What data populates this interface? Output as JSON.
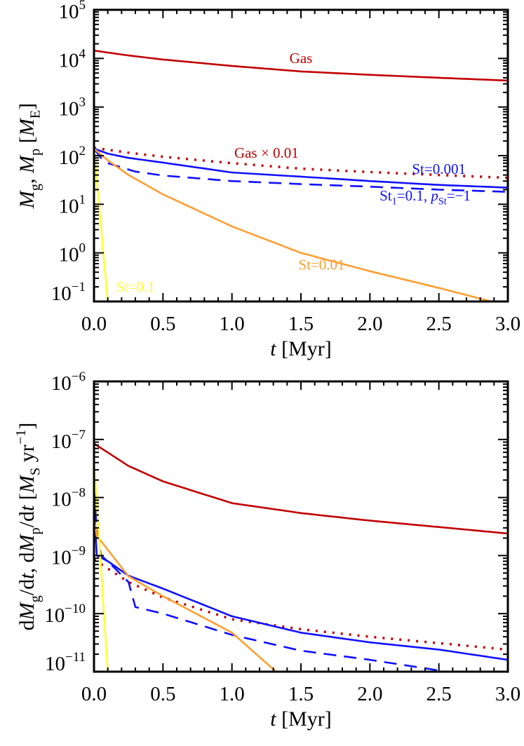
{
  "chart_data": [
    {
      "type": "line",
      "xlabel": [
        [
          "t",
          "i"
        ],
        [
          " [Myr]",
          ""
        ]
      ],
      "ylabel": [
        [
          "M",
          "i"
        ],
        [
          "g",
          "sub"
        ],
        [
          ", ",
          ""
        ],
        [
          "M",
          "i"
        ],
        [
          "p",
          "sub"
        ],
        [
          " [",
          ""
        ],
        [
          "M",
          "i"
        ],
        [
          "E",
          "sub"
        ],
        [
          "]",
          ""
        ]
      ],
      "xlim": [
        0,
        3
      ],
      "ylim": [
        0.1,
        100000
      ],
      "yscale": "log",
      "xticks": [
        "0.0",
        "0.5",
        "1.0",
        "1.5",
        "2.0",
        "2.5",
        "3.0"
      ],
      "yticks": [
        {
          "base": "10",
          "exp": "5"
        },
        {
          "base": "10",
          "exp": "4"
        },
        {
          "base": "10",
          "exp": "3"
        },
        {
          "base": "10",
          "exp": "2"
        },
        {
          "base": "10",
          "exp": "1"
        },
        {
          "base": "10",
          "exp": "0"
        },
        {
          "base": "10",
          "exp": "−1"
        }
      ],
      "series": [
        {
          "name": "Gas",
          "color": "#c00000",
          "style": "solid",
          "points": [
            [
              0,
              14500
            ],
            [
              0.25,
              11500
            ],
            [
              0.5,
              9500
            ],
            [
              1,
              7000
            ],
            [
              1.5,
              5400
            ],
            [
              2,
              4600
            ],
            [
              2.5,
              4000
            ],
            [
              3,
              3500
            ]
          ]
        },
        {
          "name": "Gas × 0.01",
          "color": "#c00000",
          "style": "dotted",
          "points": [
            [
              0,
              145
            ],
            [
              0.25,
              115
            ],
            [
              0.5,
              95
            ],
            [
              1,
              70
            ],
            [
              1.5,
              54
            ],
            [
              2,
              46
            ],
            [
              2.5,
              40
            ],
            [
              3,
              35
            ]
          ]
        },
        {
          "name": "St=0.001",
          "color": "#1010ff",
          "style": "solid",
          "points": [
            [
              0,
              140
            ],
            [
              0.1,
              110
            ],
            [
              0.25,
              90
            ],
            [
              0.5,
              72
            ],
            [
              1,
              45
            ],
            [
              1.5,
              37
            ],
            [
              2,
              30
            ],
            [
              2.5,
              25
            ],
            [
              3,
              22
            ]
          ]
        },
        {
          "name": "St1=0.1, pSt=−1",
          "color": "#1010ff",
          "style": "dashed",
          "points": [
            [
              0,
              140
            ],
            [
              0.05,
              90
            ],
            [
              0.1,
              70
            ],
            [
              0.3,
              47
            ],
            [
              0.5,
              39
            ],
            [
              1,
              30
            ],
            [
              1.5,
              26
            ],
            [
              2,
              23
            ],
            [
              2.5,
              20
            ],
            [
              3,
              18
            ]
          ]
        },
        {
          "name": "St=0.01",
          "color": "#ff9e33",
          "style": "solid",
          "points": [
            [
              0,
              140
            ],
            [
              0.1,
              80
            ],
            [
              0.25,
              40
            ],
            [
              0.5,
              16
            ],
            [
              1,
              3.5
            ],
            [
              1.5,
              1.0
            ],
            [
              2,
              0.42
            ],
            [
              2.5,
              0.19
            ],
            [
              2.88,
              0.1
            ]
          ]
        },
        {
          "name": "St=0.1",
          "color": "#ffff33",
          "style": "solid",
          "points": [
            [
              0,
              140
            ],
            [
              0.05,
              3.7
            ],
            [
              0.1,
              0.1
            ]
          ]
        }
      ],
      "annotations": [
        {
          "segments": [
            [
              "Gas",
              ""
            ]
          ],
          "color": "#c00000",
          "at": [
            1.5,
            8000
          ]
        },
        {
          "segments": [
            [
              "Gas × 0.01",
              ""
            ]
          ],
          "color": "#c00000",
          "at": [
            1.25,
            90
          ]
        },
        {
          "segments": [
            [
              "St=0.001",
              ""
            ]
          ],
          "color": "#1010ff",
          "at": [
            2.5,
            42
          ]
        },
        {
          "segments": [
            [
              "St",
              ""
            ],
            [
              "1",
              "sub"
            ],
            [
              "=0.1, ",
              ""
            ],
            [
              "p",
              "i"
            ],
            [
              "St",
              "sub"
            ],
            [
              "=−1",
              ""
            ]
          ],
          "color": "#1010ff",
          "at": [
            2.4,
            12
          ]
        },
        {
          "segments": [
            [
              "St=0.01",
              ""
            ]
          ],
          "color": "#ff9e33",
          "at": [
            1.65,
            0.45
          ]
        },
        {
          "segments": [
            [
              "St=0.1",
              ""
            ]
          ],
          "color": "#ffff33",
          "at": [
            0.3,
            0.16
          ]
        }
      ]
    },
    {
      "type": "line",
      "xlabel": [
        [
          "t",
          "i"
        ],
        [
          " [Myr]",
          ""
        ]
      ],
      "ylabel": [
        [
          "d",
          ""
        ],
        [
          "M",
          "i"
        ],
        [
          "g",
          "sub"
        ],
        [
          "/d",
          ""
        ],
        [
          "t",
          "i"
        ],
        [
          ", d",
          ""
        ],
        [
          "M",
          "i"
        ],
        [
          "p",
          "sub"
        ],
        [
          "/d",
          ""
        ],
        [
          "t",
          "i"
        ],
        [
          " [",
          ""
        ],
        [
          "M",
          "i"
        ],
        [
          "S",
          "sub"
        ],
        [
          " yr",
          ""
        ],
        [
          "−1",
          "sup"
        ],
        [
          "]",
          ""
        ]
      ],
      "xlim": [
        0,
        3
      ],
      "ylim": [
        1e-11,
        1e-06
      ],
      "yscale": "log",
      "xticks": [
        "0.0",
        "0.5",
        "1.0",
        "1.5",
        "2.0",
        "2.5",
        "3.0"
      ],
      "yticks": [
        {
          "base": "10",
          "exp": "−6"
        },
        {
          "base": "10",
          "exp": "−7"
        },
        {
          "base": "10",
          "exp": "−8"
        },
        {
          "base": "10",
          "exp": "−9"
        },
        {
          "base": "10",
          "exp": "−10"
        },
        {
          "base": "10",
          "exp": "−11"
        }
      ],
      "series": [
        {
          "name": "Gas",
          "color": "#c00000",
          "style": "solid",
          "points": [
            [
              0,
              8.5e-08
            ],
            [
              0.25,
              3.5e-08
            ],
            [
              0.5,
              1.9e-08
            ],
            [
              1,
              8e-09
            ],
            [
              1.5,
              5.4e-09
            ],
            [
              2,
              4e-09
            ],
            [
              2.5,
              3.1e-09
            ],
            [
              3,
              2.4e-09
            ]
          ]
        },
        {
          "name": "Gas × 0.01",
          "color": "#c00000",
          "style": "dotted",
          "points": [
            [
              0,
              8.5e-10
            ],
            [
              0.25,
              3.5e-10
            ],
            [
              0.5,
              1.9e-10
            ],
            [
              1,
              8e-11
            ],
            [
              1.5,
              5.4e-11
            ],
            [
              2,
              4e-11
            ],
            [
              2.5,
              3.1e-11
            ],
            [
              3,
              2.4e-11
            ]
          ]
        },
        {
          "name": "St=0.001",
          "color": "#1010ff",
          "style": "solid",
          "points": [
            [
              0,
              1.4e-08
            ],
            [
              0.01,
              3e-09
            ],
            [
              0.02,
              1e-09
            ],
            [
              0.1,
              8e-10
            ],
            [
              0.25,
              4.5e-10
            ],
            [
              0.5,
              2.7e-10
            ],
            [
              1,
              9e-11
            ],
            [
              1.5,
              4.7e-11
            ],
            [
              2,
              3.2e-11
            ],
            [
              2.5,
              2.4e-11
            ],
            [
              3,
              1.6e-11
            ]
          ]
        },
        {
          "name": "St1=0.1, pSt=−1",
          "color": "#1010ff",
          "style": "dashed",
          "points": [
            [
              0,
              1.4e-08
            ],
            [
              0.02,
              4e-09
            ],
            [
              0.05,
              1e-09
            ],
            [
              0.1,
              8e-10
            ],
            [
              0.25,
              3.5e-10
            ],
            [
              0.3,
              1.3e-10
            ],
            [
              0.5,
              1e-10
            ],
            [
              1,
              4.3e-11
            ],
            [
              1.5,
              2.3e-11
            ],
            [
              2,
              1.6e-11
            ],
            [
              2.5,
              1.05e-11
            ],
            [
              2.55,
              1e-11
            ]
          ]
        },
        {
          "name": "St=0.01",
          "color": "#ff9e33",
          "style": "solid",
          "points": [
            [
              0,
              4.4e-09
            ],
            [
              0.02,
              2.2e-09
            ],
            [
              0.25,
              4.4e-10
            ],
            [
              0.5,
              2e-10
            ],
            [
              1,
              4.7e-11
            ],
            [
              1.32,
              1e-11
            ]
          ]
        },
        {
          "name": "St=0.1",
          "color": "#ffff33",
          "style": "solid",
          "points": [
            [
              0,
              4.2e-08
            ],
            [
              0.1,
              1e-11
            ]
          ]
        }
      ],
      "annotations": []
    }
  ]
}
